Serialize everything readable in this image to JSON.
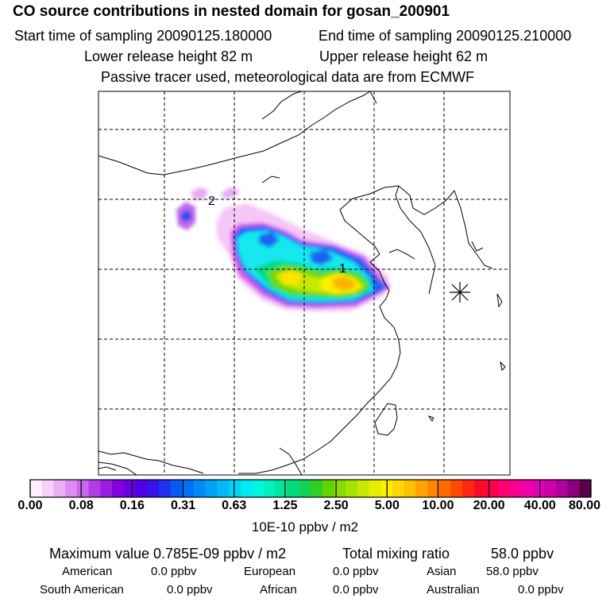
{
  "header": {
    "title": "CO  source contributions in nested domain for gosan_200901",
    "start_label": "Start time of sampling 20090125.180000",
    "end_label": "End time of sampling 20090125.210000",
    "lower_label": "Lower release height   82 m",
    "upper_label": "Upper release height   62 m",
    "note": "Passive tracer used, meteorological data are from ECMWF"
  },
  "map": {
    "markers": [
      {
        "label": "1",
        "id": "source-region-1"
      },
      {
        "label": "2",
        "id": "source-region-2"
      }
    ],
    "receptor_icon": "receptor-star-icon"
  },
  "colorbar": {
    "unit": "10E-10 ppbv / m2",
    "tick_labels": [
      "0.00",
      "0.08",
      "0.16",
      "0.31",
      "0.63",
      "1.25",
      "2.50",
      "5.00",
      "10.00",
      "20.00",
      "40.00",
      "80.00"
    ],
    "colors": [
      "#fff0ff",
      "#f4d0fa",
      "#eab0f6",
      "#dc8cf2",
      "#c868ec",
      "#b040e6",
      "#9a1ee2",
      "#8400de",
      "#6a00e2",
      "#5000e6",
      "#3810ea",
      "#2030f0",
      "#0858f4",
      "#0072f8",
      "#008af8",
      "#00a2f8",
      "#00baf8",
      "#00d2f6",
      "#00eaf2",
      "#00f6e0",
      "#00f0c0",
      "#00e69c",
      "#00dc7a",
      "#10d458",
      "#30d020",
      "#60d400",
      "#88dc00",
      "#a8e200",
      "#c8e800",
      "#e6ee00",
      "#ffee00",
      "#ffd800",
      "#ffc000",
      "#ffa400",
      "#ff8600",
      "#ff6a00",
      "#ff4a00",
      "#ff2810",
      "#ff0a2a",
      "#ff004c",
      "#ff006e",
      "#fa0090",
      "#f000a6",
      "#e200b4",
      "#cc00aa",
      "#b0009a",
      "#8a007c",
      "#5a004a"
    ]
  },
  "stats": {
    "max_label": "Maximum value  0.785E-09 ppbv / m2",
    "total_label": "Total mixing ratio",
    "total_value": "58.0 ppbv",
    "rows": [
      {
        "name": "American",
        "value": "0.0 ppbv"
      },
      {
        "name": "European",
        "value": "0.0 ppbv"
      },
      {
        "name": "Asian",
        "value": "58.0 ppbv"
      },
      {
        "name": "South American",
        "value": "0.0 ppbv"
      },
      {
        "name": "African",
        "value": "0.0 ppbv"
      },
      {
        "name": "Australian",
        "value": "0.0 ppbv"
      }
    ]
  }
}
